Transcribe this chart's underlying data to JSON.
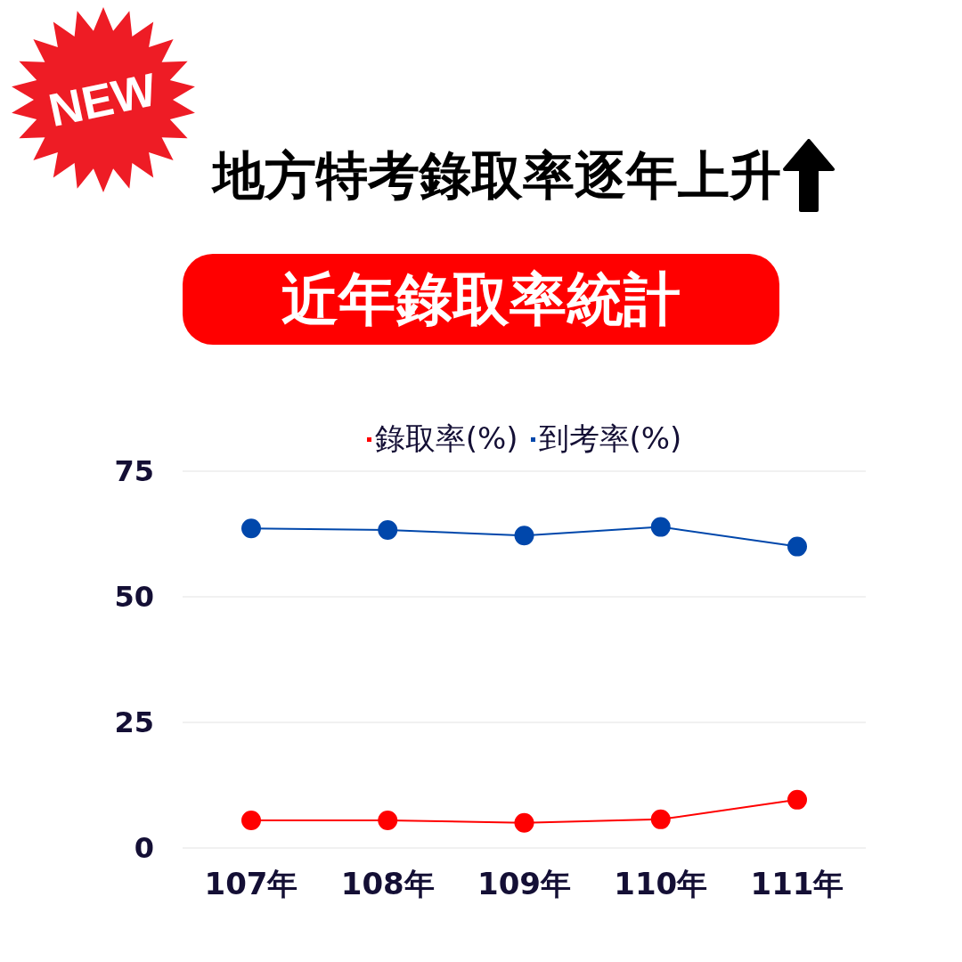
{
  "chart_data": {
    "type": "line",
    "title": "地方特考錄取率逐年上升",
    "subtitle": "近年錄取率統計",
    "annotations": [
      "NEW"
    ],
    "categories": [
      "107年",
      "108年",
      "109年",
      "110年",
      "111年"
    ],
    "series": [
      {
        "name": "錄取率(%)",
        "color": "#ff0000",
        "values": [
          5.5,
          5.5,
          5.0,
          5.7,
          9.6
        ]
      },
      {
        "name": "到考率(%)",
        "color": "#0047ab",
        "values": [
          63.6,
          63.3,
          62.2,
          63.9,
          60.0
        ]
      }
    ],
    "ylim": [
      0,
      75
    ],
    "yticks": [
      0,
      25,
      50,
      75
    ],
    "grid": "y",
    "legend": "top",
    "marker": "circle",
    "line_style": "solid"
  }
}
